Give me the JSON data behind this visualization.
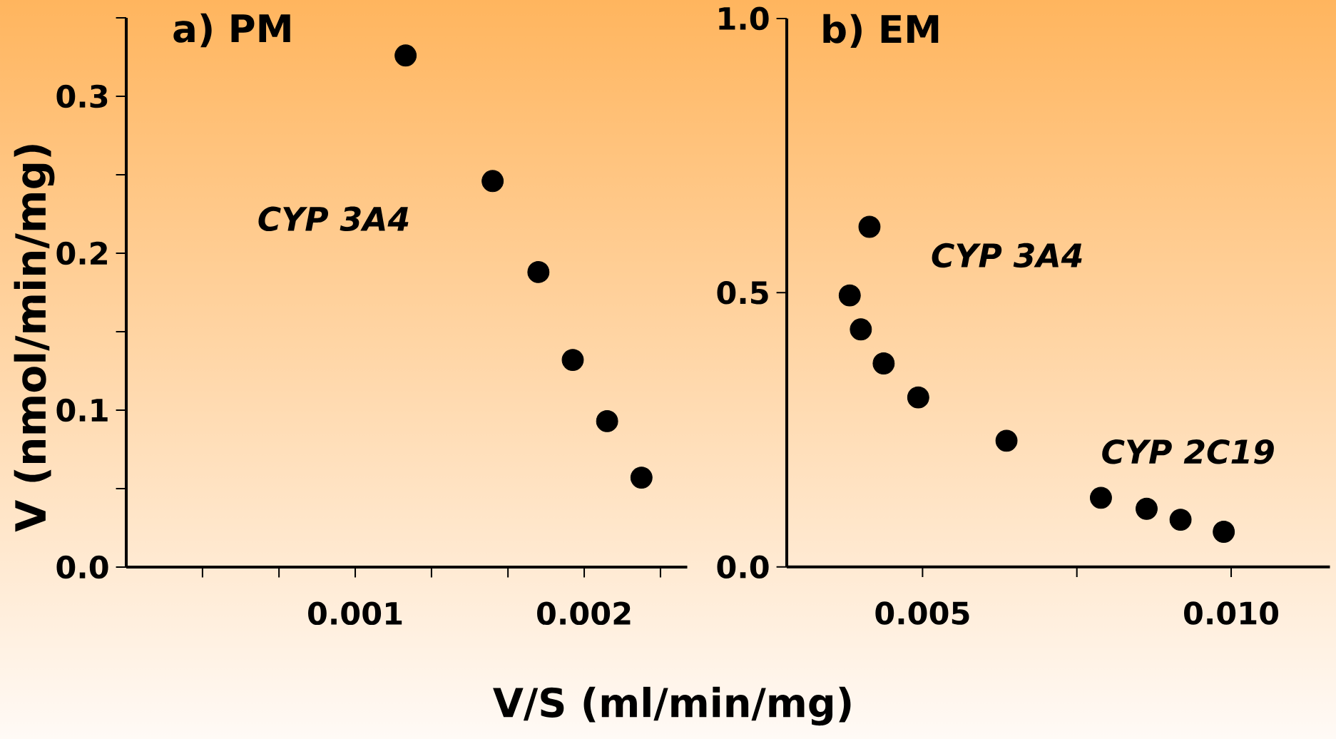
{
  "chart_data": [
    {
      "type": "scatter",
      "title": "a) PM",
      "xlabel": "V/S (ml/min/mg)",
      "ylabel": "V (nmol/min/mg)",
      "x": [
        0.00122,
        0.0016,
        0.0018,
        0.00195,
        0.0021,
        0.00225
      ],
      "series": [
        {
          "color": "#000000",
          "values": [
            0.326,
            0.246,
            0.188,
            0.132,
            0.093,
            0.057
          ]
        }
      ],
      "marker": "circle",
      "xlim": [
        0,
        0.00245
      ],
      "ylim": [
        0,
        0.35
      ],
      "xticks": [
        {
          "value": 0.000333,
          "label": null
        },
        {
          "value": 0.000667,
          "label": null
        },
        0.001,
        {
          "value": 0.001333,
          "label": null
        },
        {
          "value": 0.001667,
          "label": null
        },
        0.002,
        {
          "value": 0.002333,
          "label": null
        }
      ],
      "yticks": [
        {
          "value": 0,
          "label": "0.0"
        },
        {
          "value": 0.05,
          "label": null
        },
        0.1,
        {
          "value": 0.15,
          "label": null
        },
        0.2,
        {
          "value": 0.25,
          "label": null
        },
        0.3,
        {
          "value": 0.35,
          "label": null
        }
      ],
      "annotations": [
        "CYP 3A4"
      ]
    },
    {
      "type": "scatter",
      "title": "b) EM",
      "x": [
        0.00414,
        0.00382,
        0.004,
        0.00437,
        0.00493,
        0.00636,
        0.00789,
        0.00863,
        0.00918,
        0.00988
      ],
      "series": [
        {
          "color": "#000000",
          "values": [
            0.62,
            0.495,
            0.433,
            0.371,
            0.309,
            0.23,
            0.126,
            0.106,
            0.086,
            0.064
          ]
        }
      ],
      "marker": "circle",
      "xlim": [
        0.0028,
        0.0116
      ],
      "ylim": [
        0,
        1.0
      ],
      "xticks": [
        0.005,
        {
          "value": 0.0075,
          "label": null
        },
        {
          "value": 0.01,
          "label": "0.010"
        }
      ],
      "yticks": [
        {
          "value": 0,
          "label": "0.0"
        },
        0.5,
        {
          "value": 1.0,
          "label": "1.0"
        }
      ],
      "annotations": [
        "CYP 3A4",
        "CYP 2C19"
      ]
    }
  ]
}
